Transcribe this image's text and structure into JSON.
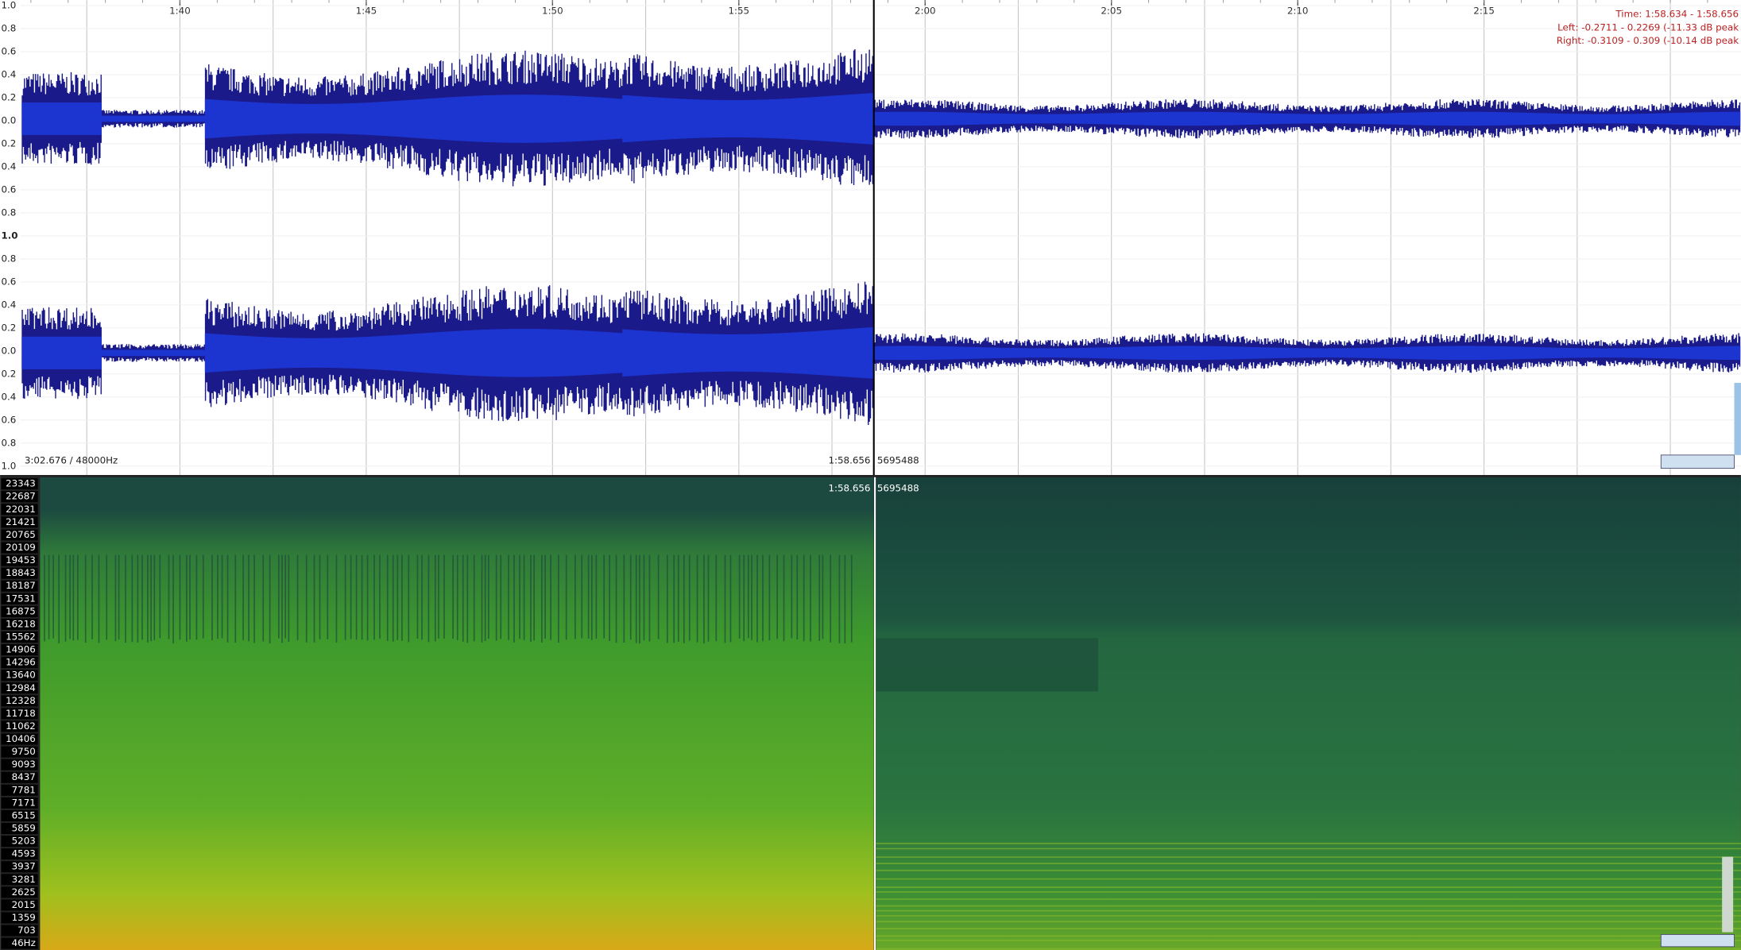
{
  "timeline": {
    "labels": [
      "1:40",
      "1:45",
      "1:50",
      "1:55",
      "2:00",
      "2:05",
      "2:10",
      "2:15"
    ]
  },
  "info": {
    "time": "Time: 1:58.634 - 1:58.656",
    "left": "Left: -0.2711 - 0.2269 (-11.33 dB peak",
    "right": "Right: -0.3109 - 0.309 (-10.14 dB peak"
  },
  "amplitude_labels": [
    "1.0",
    "0.8",
    "0.6",
    "0.4",
    "0.2",
    "0.0",
    "0.2",
    "0.4",
    "0.6",
    "0.8",
    "1.0",
    "0.8",
    "0.6",
    "0.4",
    "0.2",
    "0.0",
    "0.2",
    "0.4",
    "0.6",
    "0.8",
    "1.0"
  ],
  "status": {
    "duration": "3:02.676 / 48000Hz",
    "cursor_time": "1:58.656",
    "cursor_sample": "5695488"
  },
  "spectrogram": {
    "cursor_time": "1:58.656",
    "cursor_sample": "5695488",
    "frequency_labels": [
      "23343",
      "22687",
      "22031",
      "21421",
      "20765",
      "20109",
      "19453",
      "18843",
      "18187",
      "17531",
      "16875",
      "16218",
      "15562",
      "14906",
      "14296",
      "13640",
      "12984",
      "12328",
      "11718",
      "11062",
      "10406",
      "9750",
      "9093",
      "8437",
      "7781",
      "7171",
      "6515",
      "5859",
      "5203",
      "4593",
      "3937",
      "3281",
      "2625",
      "2015",
      "1359",
      "703",
      "46Hz"
    ]
  }
}
